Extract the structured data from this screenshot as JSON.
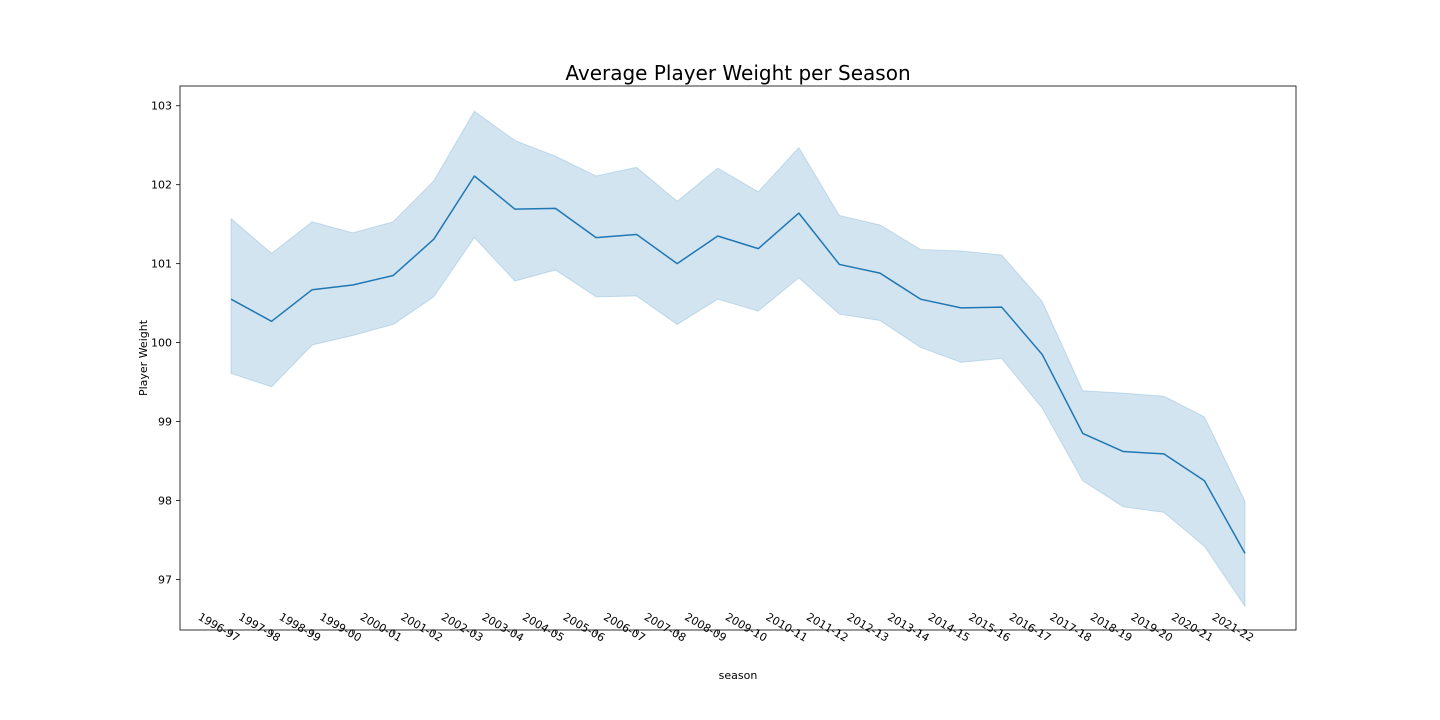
{
  "chart_data": {
    "type": "line",
    "title": "Average Player Weight per Season",
    "xlabel": "season",
    "ylabel": "Player Weight",
    "categories": [
      "1996-97",
      "1997-98",
      "1998-99",
      "1999-00",
      "2000-01",
      "2001-02",
      "2002-03",
      "2003-04",
      "2004-05",
      "2005-06",
      "2006-07",
      "2007-08",
      "2008-09",
      "2009-10",
      "2010-11",
      "2011-12",
      "2012-13",
      "2013-14",
      "2014-15",
      "2015-16",
      "2016-17",
      "2017-18",
      "2018-19",
      "2019-20",
      "2020-21",
      "2021-22"
    ],
    "series": [
      {
        "values": [
          100.55,
          100.27,
          100.67,
          100.73,
          100.85,
          101.31,
          102.11,
          101.69,
          101.7,
          101.33,
          101.37,
          101.0,
          101.35,
          101.19,
          101.64,
          100.99,
          100.88,
          100.55,
          100.44,
          100.45,
          99.85,
          98.85,
          98.62,
          98.59,
          98.25,
          97.33
        ],
        "ci_lower": [
          99.61,
          99.44,
          99.97,
          100.09,
          100.23,
          100.58,
          101.33,
          100.78,
          100.92,
          100.58,
          100.59,
          100.23,
          100.55,
          100.4,
          100.82,
          100.36,
          100.28,
          99.94,
          99.75,
          99.8,
          99.17,
          98.25,
          97.92,
          97.85,
          97.42,
          96.66
        ],
        "ci_upper": [
          101.57,
          101.13,
          101.53,
          101.39,
          101.53,
          102.05,
          102.93,
          102.56,
          102.36,
          102.11,
          102.22,
          101.79,
          102.21,
          101.91,
          102.47,
          101.61,
          101.49,
          101.18,
          101.16,
          101.11,
          100.52,
          99.39,
          99.36,
          99.32,
          99.06,
          97.99
        ],
        "line_color": "#1f77b4",
        "band_color": "#1f77b4"
      }
    ],
    "yticks": [
      97,
      98,
      99,
      100,
      101,
      102,
      103
    ],
    "ylim": [
      96.36,
      103.25
    ],
    "grid": false,
    "legend": "none"
  }
}
